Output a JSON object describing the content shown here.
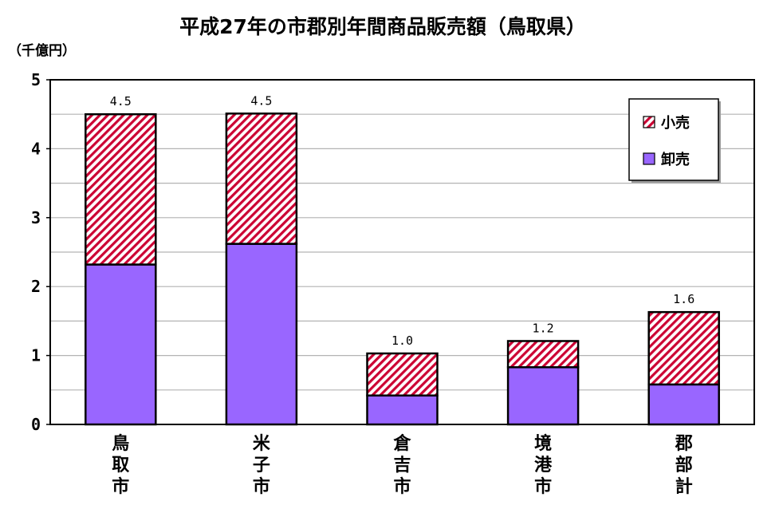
{
  "chart_data": {
    "type": "bar",
    "stacked": true,
    "title": "平成27年の市郡別年間商品販売額（鳥取県）",
    "unit_label": "（千億円）",
    "categories": [
      "鳥取市",
      "米子市",
      "倉吉市",
      "境港市",
      "郡部計"
    ],
    "series": [
      {
        "name": "卸売",
        "values": [
          2.32,
          2.62,
          0.42,
          0.83,
          0.58
        ],
        "color": "#9966ff",
        "pattern": "solid"
      },
      {
        "name": "小売",
        "values": [
          2.18,
          1.89,
          0.61,
          0.38,
          1.05
        ],
        "color": "#cc0033",
        "pattern": "diagonal-hatch"
      }
    ],
    "totals": [
      "4.5",
      "4.5",
      "1.0",
      "1.2",
      "1.6"
    ],
    "ylim": [
      0,
      5
    ],
    "yticks": [
      "0",
      "1",
      "2",
      "3",
      "4",
      "5"
    ],
    "minor_grid_step": 0.5,
    "grid": true,
    "legend_position": "top-right",
    "legend_order": [
      "小売",
      "卸売"
    ],
    "plot_background": "#ffffff",
    "grid_color": "#b3b3b3"
  }
}
